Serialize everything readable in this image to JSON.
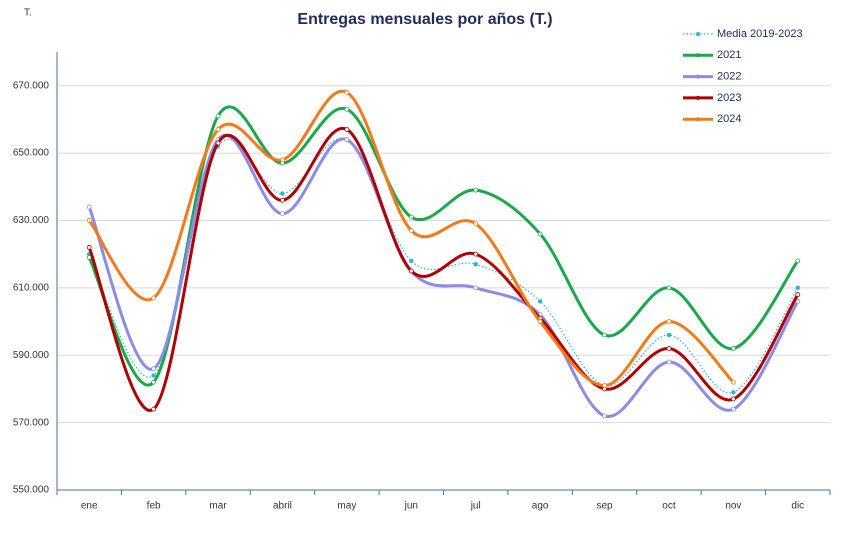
{
  "chart_data": {
    "type": "line",
    "title": "Entregas mensuales por años (T.)",
    "unit_label": "T.",
    "categories": [
      "ene",
      "feb",
      "mar",
      "abril",
      "may",
      "jun",
      "jul",
      "ago",
      "sep",
      "oct",
      "nov",
      "dic"
    ],
    "series": [
      {
        "name": "Media 2019-2023",
        "color": "#29b6d6",
        "line_style": "dotted",
        "values": [
          620000,
          584000,
          652000,
          638000,
          654000,
          618000,
          617000,
          606000,
          581000,
          596000,
          579000,
          610000
        ]
      },
      {
        "name": "2021",
        "color": "#1aa84a",
        "line_style": "solid",
        "values": [
          619000,
          582000,
          661000,
          647000,
          663000,
          631000,
          639000,
          626000,
          596000,
          610000,
          592000,
          618000
        ]
      },
      {
        "name": "2022",
        "color": "#8b8be8",
        "line_style": "solid",
        "values": [
          634000,
          586000,
          654000,
          632000,
          654000,
          615000,
          610000,
          602000,
          572000,
          588000,
          574000,
          606000
        ]
      },
      {
        "name": "2023",
        "color": "#b00000",
        "line_style": "solid",
        "values": [
          622000,
          574000,
          653000,
          636000,
          657000,
          615000,
          620000,
          601000,
          580000,
          592000,
          577000,
          608000
        ]
      },
      {
        "name": "2024",
        "color": "#f27a1a",
        "line_style": "solid",
        "values": [
          630000,
          607000,
          657000,
          648000,
          668000,
          627000,
          629000,
          600000,
          581000,
          600000,
          582000,
          null
        ]
      }
    ],
    "ylim": [
      550000,
      680000
    ],
    "yticks": [
      {
        "value": 550000,
        "label": "550.000"
      },
      {
        "value": 570000,
        "label": "570.000"
      },
      {
        "value": 590000,
        "label": "590.000"
      },
      {
        "value": 610000,
        "label": "610.000"
      },
      {
        "value": 630000,
        "label": "630.000"
      },
      {
        "value": 650000,
        "label": "650.000"
      },
      {
        "value": 670000,
        "label": "670.000"
      }
    ],
    "grid": true,
    "legend": "top-right"
  }
}
